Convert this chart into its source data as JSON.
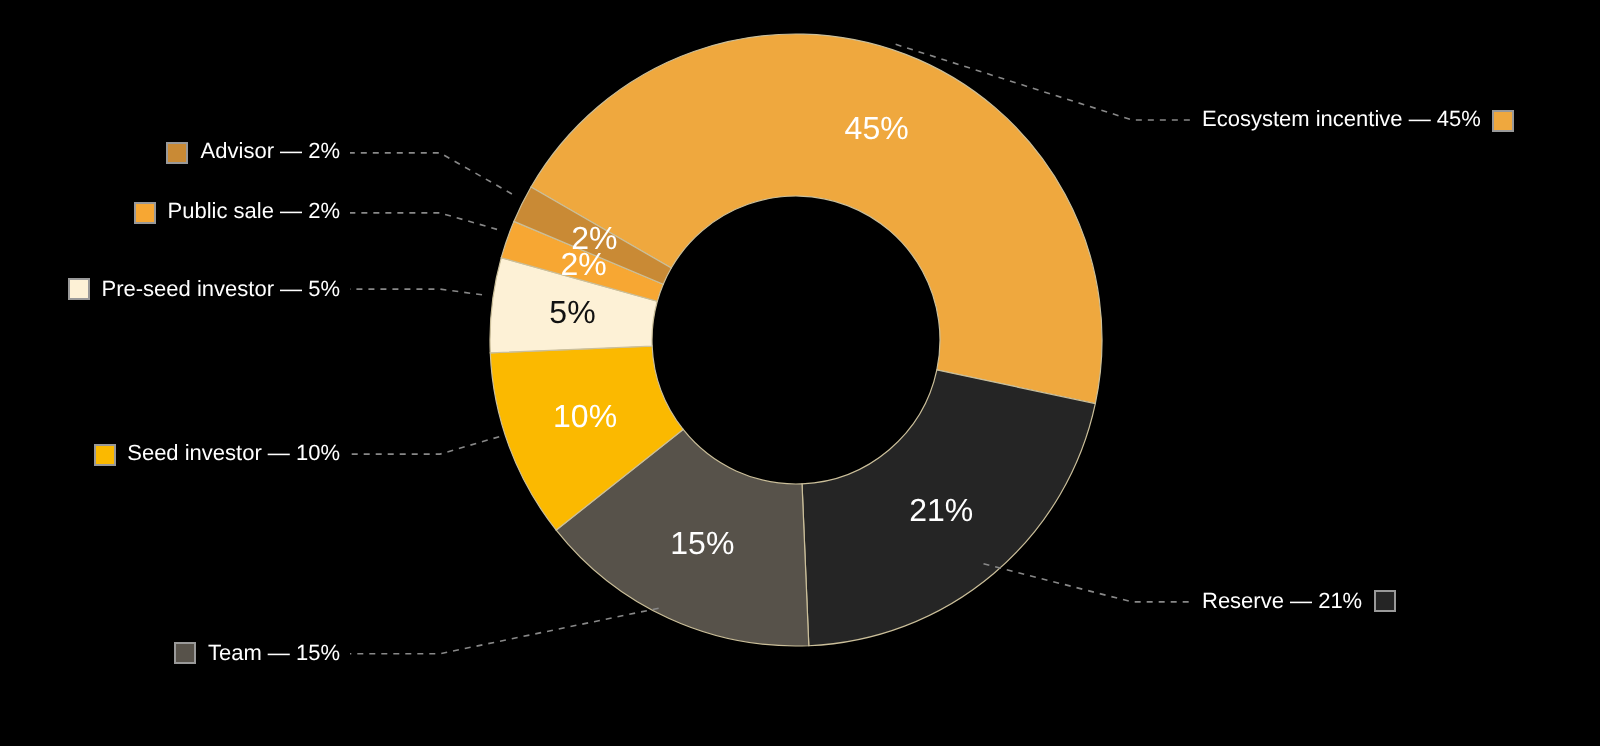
{
  "chart_data": {
    "type": "donut",
    "legend": "left",
    "categories": [
      "Ecosystem incentive — 45%",
      "Reserve — 21%",
      "Team — 15%",
      "Seed investor — 10%",
      "Pre-seed investor — 5%",
      "Public sale — 2%",
      "Advisor — 2%"
    ],
    "values": [
      45,
      21,
      15,
      10,
      5,
      2,
      2
    ],
    "value_labels": [
      "45%",
      "21%",
      "15%",
      "10%",
      "5%",
      "2%",
      "2%"
    ],
    "colors": [
      "#efa83e",
      "#252525",
      "#57524a",
      "#fbb900",
      "#fdf1d6",
      "#f7a733",
      "#c98a35"
    ]
  }
}
